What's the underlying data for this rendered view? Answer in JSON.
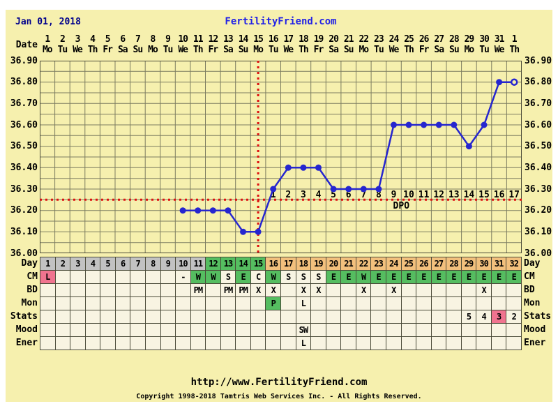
{
  "header": {
    "cycle_start_date": "Jan 01, 2018",
    "site_title": "FertilityFriend.com"
  },
  "calendar": {
    "axis_label": "Date",
    "dates": [
      "1",
      "2",
      "3",
      "4",
      "5",
      "6",
      "7",
      "8",
      "9",
      "10",
      "11",
      "12",
      "13",
      "14",
      "15",
      "16",
      "17",
      "18",
      "19",
      "20",
      "21",
      "22",
      "23",
      "24",
      "25",
      "26",
      "27",
      "28",
      "29",
      "30",
      "31",
      "1"
    ],
    "weekdays": [
      "Mo",
      "Tu",
      "We",
      "Th",
      "Fr",
      "Sa",
      "Su",
      "Mo",
      "Tu",
      "We",
      "Th",
      "Fr",
      "Sa",
      "Su",
      "Mo",
      "Tu",
      "We",
      "Th",
      "Fr",
      "Sa",
      "Su",
      "Mo",
      "Tu",
      "We",
      "Th",
      "Fr",
      "Sa",
      "Su",
      "Mo",
      "Tu",
      "We",
      "Th"
    ]
  },
  "chart_data": {
    "type": "line",
    "y_ticks": [
      "36.90",
      "36.80",
      "36.70",
      "36.60",
      "36.50",
      "36.40",
      "36.30",
      "36.20",
      "36.10",
      "36.00"
    ],
    "ylim": [
      36.0,
      36.9
    ],
    "grid": "on",
    "points": [
      {
        "day": 10,
        "temp": 36.2
      },
      {
        "day": 11,
        "temp": 36.2
      },
      {
        "day": 12,
        "temp": 36.2
      },
      {
        "day": 13,
        "temp": 36.2
      },
      {
        "day": 14,
        "temp": 36.1
      },
      {
        "day": 15,
        "temp": 36.1
      },
      {
        "day": 16,
        "temp": 36.3
      },
      {
        "day": 17,
        "temp": 36.4
      },
      {
        "day": 18,
        "temp": 36.4
      },
      {
        "day": 19,
        "temp": 36.4
      },
      {
        "day": 20,
        "temp": 36.3
      },
      {
        "day": 21,
        "temp": 36.3
      },
      {
        "day": 22,
        "temp": 36.3
      },
      {
        "day": 23,
        "temp": 36.3
      },
      {
        "day": 24,
        "temp": 36.6
      },
      {
        "day": 25,
        "temp": 36.6
      },
      {
        "day": 26,
        "temp": 36.6
      },
      {
        "day": 27,
        "temp": 36.6
      },
      {
        "day": 28,
        "temp": 36.6
      },
      {
        "day": 29,
        "temp": 36.5
      },
      {
        "day": 30,
        "temp": 36.6
      },
      {
        "day": 31,
        "temp": 36.8
      },
      {
        "day": 32,
        "temp": 36.8,
        "open": true
      }
    ],
    "coverline_temp": 36.25,
    "ovulation_day_x": 15,
    "dpo": {
      "start_day": 16,
      "labels": [
        "1",
        "2",
        "3",
        "4",
        "5",
        "6",
        "7",
        "8",
        "9",
        "10",
        "11",
        "12",
        "13",
        "14",
        "15",
        "16",
        "17"
      ],
      "caption": "DPO"
    }
  },
  "table": {
    "bg_codes": {
      "g": "gray",
      "G": "green",
      "t": "tan",
      "p": "pink",
      "w": "default"
    },
    "rows": [
      {
        "label": "Day",
        "cells": {
          "1": [
            "1",
            "g"
          ],
          "2": [
            "2",
            "g"
          ],
          "3": [
            "3",
            "g"
          ],
          "4": [
            "4",
            "g"
          ],
          "5": [
            "5",
            "g"
          ],
          "6": [
            "6",
            "g"
          ],
          "7": [
            "7",
            "g"
          ],
          "8": [
            "8",
            "g"
          ],
          "9": [
            "9",
            "g"
          ],
          "10": [
            "10",
            "g"
          ],
          "11": [
            "11",
            "g"
          ],
          "12": [
            "12",
            "G"
          ],
          "13": [
            "13",
            "G"
          ],
          "14": [
            "14",
            "G"
          ],
          "15": [
            "15",
            "G"
          ],
          "16": [
            "16",
            "t"
          ],
          "17": [
            "17",
            "t"
          ],
          "18": [
            "18",
            "t"
          ],
          "19": [
            "19",
            "t"
          ],
          "20": [
            "20",
            "t"
          ],
          "21": [
            "21",
            "t"
          ],
          "22": [
            "22",
            "t"
          ],
          "23": [
            "23",
            "t"
          ],
          "24": [
            "24",
            "t"
          ],
          "25": [
            "25",
            "t"
          ],
          "26": [
            "26",
            "t"
          ],
          "27": [
            "27",
            "t"
          ],
          "28": [
            "28",
            "t"
          ],
          "29": [
            "29",
            "t"
          ],
          "30": [
            "30",
            "t"
          ],
          "31": [
            "31",
            "t"
          ],
          "32": [
            "32",
            "t"
          ]
        }
      },
      {
        "label": "CM",
        "cells": {
          "1": [
            "L",
            "p"
          ],
          "10": [
            "-",
            "w"
          ],
          "11": [
            "W",
            "G"
          ],
          "12": [
            "W",
            "G"
          ],
          "13": [
            "S",
            "w"
          ],
          "14": [
            "E",
            "G"
          ],
          "15": [
            "C",
            "w"
          ],
          "16": [
            "W",
            "G"
          ],
          "17": [
            "S",
            "w"
          ],
          "18": [
            "S",
            "w"
          ],
          "19": [
            "S",
            "w"
          ],
          "20": [
            "E",
            "G"
          ],
          "21": [
            "E",
            "G"
          ],
          "22": [
            "W",
            "G"
          ],
          "23": [
            "E",
            "G"
          ],
          "24": [
            "E",
            "G"
          ],
          "25": [
            "E",
            "G"
          ],
          "26": [
            "E",
            "G"
          ],
          "27": [
            "E",
            "G"
          ],
          "28": [
            "E",
            "G"
          ],
          "29": [
            "E",
            "G"
          ],
          "30": [
            "E",
            "G"
          ],
          "31": [
            "E",
            "G"
          ],
          "32": [
            "E",
            "G"
          ]
        }
      },
      {
        "label": "BD",
        "cells": {
          "11": [
            "PM",
            "w"
          ],
          "13": [
            "PM",
            "w"
          ],
          "14": [
            "PM",
            "w"
          ],
          "15": [
            "X",
            "w"
          ],
          "16": [
            "X",
            "w"
          ],
          "18": [
            "X",
            "w"
          ],
          "19": [
            "X",
            "w"
          ],
          "22": [
            "X",
            "w"
          ],
          "24": [
            "X",
            "w"
          ],
          "30": [
            "X",
            "w"
          ]
        }
      },
      {
        "label": "Mon",
        "cells": {
          "16": [
            "P",
            "G"
          ],
          "18": [
            "L",
            "w"
          ]
        }
      },
      {
        "label": "Stats",
        "cells": {
          "29": [
            "5",
            "w"
          ],
          "30": [
            "4",
            "w"
          ],
          "31": [
            "3",
            "p"
          ],
          "32": [
            "2",
            "w"
          ]
        }
      },
      {
        "label": "Mood",
        "cells": {
          "18": [
            "SW",
            "w"
          ]
        }
      },
      {
        "label": "Ener",
        "cells": {
          "18": [
            "L",
            "w"
          ]
        }
      }
    ]
  },
  "footer": {
    "url": "http://www.FertilityFriend.com",
    "copyright": "Copyright 1998-2018 Tamtris Web Services Inc. - All Rights Reserved."
  },
  "colors": {
    "panel_bg": "#f6f0ae",
    "cell_bg": "#f8f4e2",
    "gray": "#c2c2c2",
    "green": "#55bd60",
    "tan": "#f2c07d",
    "pink": "#f0738f",
    "grid_line": "#7c7c60",
    "table_border": "#4a4a38",
    "temp_line_blue": "#2626cf",
    "crosshair_red": "#dd1010",
    "navy": "#00008b",
    "link_blue": "#2222e6"
  }
}
